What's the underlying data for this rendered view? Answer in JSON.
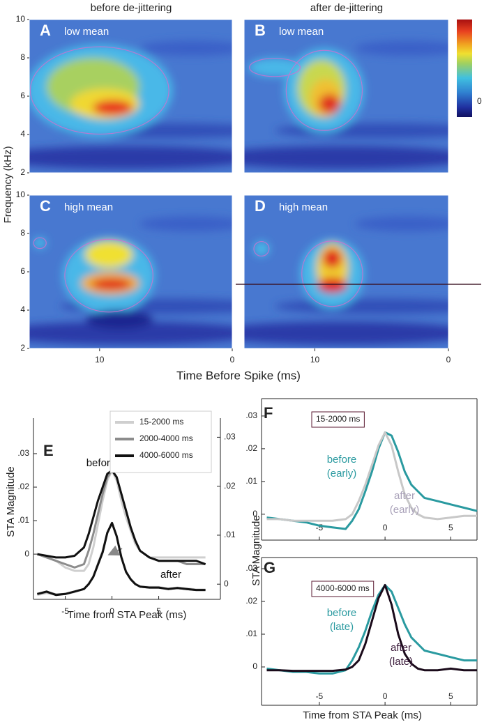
{
  "chart_data": [
    {
      "type": "heatmap",
      "column_titles": [
        "before de-jittering",
        "after de-jittering"
      ],
      "panels": [
        {
          "letter": "A",
          "label": "low mean"
        },
        {
          "letter": "B",
          "label": "low mean"
        },
        {
          "letter": "C",
          "label": "high mean"
        },
        {
          "letter": "D",
          "label": "high mean",
          "hline": 5.35
        }
      ],
      "xlabel": "Time Before Spike (ms)",
      "ylabel": "Frequency (kHz)",
      "xlim": [
        15.3,
        0
      ],
      "xticks": [
        10,
        0
      ],
      "ylim": [
        2,
        10
      ],
      "yticks": [
        2,
        4,
        6,
        8,
        10
      ],
      "colorbar_ticks": [
        0
      ]
    },
    {
      "type": "line",
      "panel": "E",
      "xlabel": "Time from STA Peak (ms)",
      "ylabel": "STA Magnitude",
      "xlim": [
        -8.4,
        11.6
      ],
      "xticks": [
        -5,
        0,
        5
      ],
      "ylim": [
        -0.0135,
        0.0406
      ],
      "yticks": [
        0,
        {
          "value": 0.01,
          "label": ".01"
        },
        {
          "value": 0.02,
          "label": ".02"
        },
        {
          "value": 0.03,
          "label": ".03"
        }
      ],
      "y2lim": [
        -0.0031,
        0.0339
      ],
      "y2ticks": [
        0,
        {
          "value": 0.01,
          "label": ".01"
        },
        {
          "value": 0.02,
          "label": ".02"
        },
        {
          "value": 0.03,
          "label": ".03"
        }
      ],
      "x": [
        -8,
        -7,
        -6,
        -5,
        -4,
        -3,
        -2.5,
        -2,
        -1.5,
        -1,
        -0.5,
        0,
        0.5,
        1,
        1.5,
        2,
        2.5,
        3,
        4,
        5,
        6,
        7,
        8,
        9,
        10
      ],
      "series": [
        {
          "name": "15-2000 ms",
          "color": "#cfcfcf",
          "values": [
            0,
            -0.001,
            -0.002,
            -0.004,
            -0.005,
            -0.005,
            -0.003,
            0.002,
            0.009,
            0.016,
            0.022,
            0.025,
            0.022,
            0.016,
            0.011,
            0.007,
            0.003,
            0.001,
            -0.001,
            -0.001,
            -0.001,
            -0.001,
            -0.001,
            -0.001,
            -0.001
          ]
        },
        {
          "name": "2000-4000 ms",
          "color": "#8c8c8c",
          "values": [
            0,
            -0.001,
            -0.002,
            -0.003,
            -0.004,
            -0.003,
            0.001,
            0.006,
            0.012,
            0.018,
            0.023,
            0.025,
            0.023,
            0.018,
            0.013,
            0.008,
            0.004,
            0.001,
            -0.001,
            -0.002,
            -0.002,
            -0.002,
            -0.003,
            -0.003,
            -0.003
          ]
        },
        {
          "name": "4000-6000 ms",
          "color": "#111111",
          "values": [
            0,
            -0.0005,
            -0.001,
            -0.001,
            -0.0005,
            0.002,
            0.006,
            0.011,
            0.016,
            0.02,
            0.024,
            0.025,
            0.023,
            0.018,
            0.013,
            0.008,
            0.004,
            0.001,
            -0.001,
            -0.002,
            -0.002,
            -0.002,
            -0.002,
            -0.002,
            -0.003
          ]
        },
        {
          "color": "#cfcfcf",
          "axis": "y2",
          "values": [
            -0.0022,
            -0.0018,
            -0.0022,
            -0.002,
            -0.0016,
            -0.001,
            0,
            0.0016,
            0.0042,
            0.0068,
            0.0105,
            0.0125,
            0.0098,
            0.0056,
            0.0026,
            0.001,
            0,
            -0.0005,
            -0.0006,
            -0.0006,
            -0.0009,
            -0.0007,
            -0.0009,
            -0.0011,
            -0.0011
          ]
        },
        {
          "color": "#8c8c8c",
          "axis": "y2",
          "values": [
            -0.002,
            -0.0016,
            -0.0021,
            -0.002,
            -0.0015,
            -0.001,
            0,
            0.0015,
            0.0041,
            0.0066,
            0.0105,
            0.0125,
            0.0098,
            0.0055,
            0.0025,
            0.001,
            0,
            -0.0005,
            -0.0007,
            -0.0007,
            -0.001,
            -0.0008,
            -0.001,
            -0.0012,
            -0.0012
          ]
        },
        {
          "color": "#111111",
          "axis": "y2",
          "values": [
            -0.002,
            -0.0015,
            -0.0022,
            -0.002,
            -0.0015,
            -0.001,
            0,
            0.0015,
            0.004,
            0.0065,
            0.0105,
            0.0125,
            0.0098,
            0.0055,
            0.0025,
            0.001,
            0,
            -0.0005,
            -0.0007,
            -0.0007,
            -0.001,
            -0.0008,
            -0.001,
            -0.0012,
            -0.0012
          ]
        }
      ],
      "annotations": [
        {
          "lines": [
            "before"
          ],
          "color": "#111111"
        },
        {
          "lines": [
            "after"
          ],
          "color": "#111111"
        }
      ]
    },
    {
      "type": "line",
      "panel": "F",
      "ylabel": "STA Magnitude",
      "condition": "15-2000 ms",
      "xlim": [
        -9.4,
        7.0
      ],
      "xticks": [
        -5,
        0,
        5
      ],
      "ylim": [
        -0.0079,
        0.0353
      ],
      "yticks": [
        0,
        {
          "value": 0.01,
          "label": ".01"
        },
        {
          "value": 0.02,
          "label": ".02"
        },
        {
          "value": 0.03,
          "label": ".03"
        }
      ],
      "x": [
        -9,
        -8,
        -7,
        -6,
        -5,
        -4,
        -3,
        -2.5,
        -2,
        -1.5,
        -1,
        -0.5,
        0,
        0.5,
        1,
        1.5,
        2,
        2.5,
        3,
        4,
        5,
        6,
        7
      ],
      "series": [
        {
          "color": "#2a9aa0",
          "values": [
            -0.001,
            -0.0015,
            -0.002,
            -0.0025,
            -0.0035,
            -0.004,
            -0.0045,
            -0.002,
            0.0015,
            0.007,
            0.013,
            0.02,
            0.025,
            0.024,
            0.019,
            0.013,
            0.009,
            0.007,
            0.005,
            0.004,
            0.003,
            0.002,
            0.001
          ]
        },
        {
          "color": "#c8c8c8",
          "values": [
            -0.0015,
            -0.0015,
            -0.002,
            -0.002,
            -0.002,
            -0.002,
            -0.0015,
            0,
            0.004,
            0.009,
            0.015,
            0.021,
            0.025,
            0.021,
            0.013,
            0.006,
            0.002,
            0,
            -0.001,
            -0.0015,
            -0.001,
            -0.0005,
            -0.0005
          ]
        }
      ],
      "annotations": [
        {
          "lines": [
            "before",
            "(early)"
          ],
          "color": "#2a9aa0"
        },
        {
          "lines": [
            "after",
            "(early)"
          ],
          "color": "#a8a0b8"
        }
      ]
    },
    {
      "type": "line",
      "panel": "G",
      "xlabel": "Time from STA Peak (ms)",
      "condition": "4000-6000 ms",
      "xlim": [
        -9.4,
        7.0
      ],
      "xticks": [
        -5,
        0,
        5
      ],
      "ylim": [
        -0.0117,
        0.0334
      ],
      "yticks": [
        0,
        {
          "value": 0.01,
          "label": ".01"
        },
        {
          "value": 0.02,
          "label": ".02"
        },
        {
          "value": 0.03,
          "label": ".03"
        }
      ],
      "x": [
        -9,
        -8,
        -7,
        -6,
        -5,
        -4,
        -3,
        -2.5,
        -2,
        -1.5,
        -1,
        -0.5,
        0,
        0.5,
        1,
        1.5,
        2,
        2.5,
        3,
        4,
        5,
        6,
        7
      ],
      "series": [
        {
          "color": "#2a9aa0",
          "values": [
            -0.0005,
            -0.001,
            -0.0015,
            -0.0015,
            -0.002,
            -0.002,
            -0.001,
            0.002,
            0.006,
            0.011,
            0.017,
            0.022,
            0.025,
            0.023,
            0.018,
            0.013,
            0.009,
            0.007,
            0.005,
            0.004,
            0.003,
            0.002,
            0.002
          ]
        },
        {
          "color": "#1a0a1a",
          "values": [
            -0.001,
            -0.001,
            -0.0012,
            -0.0012,
            -0.0012,
            -0.0012,
            -0.0008,
            0,
            0.002,
            0.007,
            0.014,
            0.021,
            0.025,
            0.019,
            0.01,
            0.004,
            0.001,
            -0.0005,
            -0.001,
            -0.001,
            -0.0005,
            -0.001,
            -0.001
          ]
        }
      ],
      "annotations": [
        {
          "lines": [
            "before",
            "(late)"
          ],
          "color": "#2a9aa0"
        },
        {
          "lines": [
            "after",
            "(late)"
          ],
          "color": "#3a1a3a"
        }
      ]
    }
  ]
}
